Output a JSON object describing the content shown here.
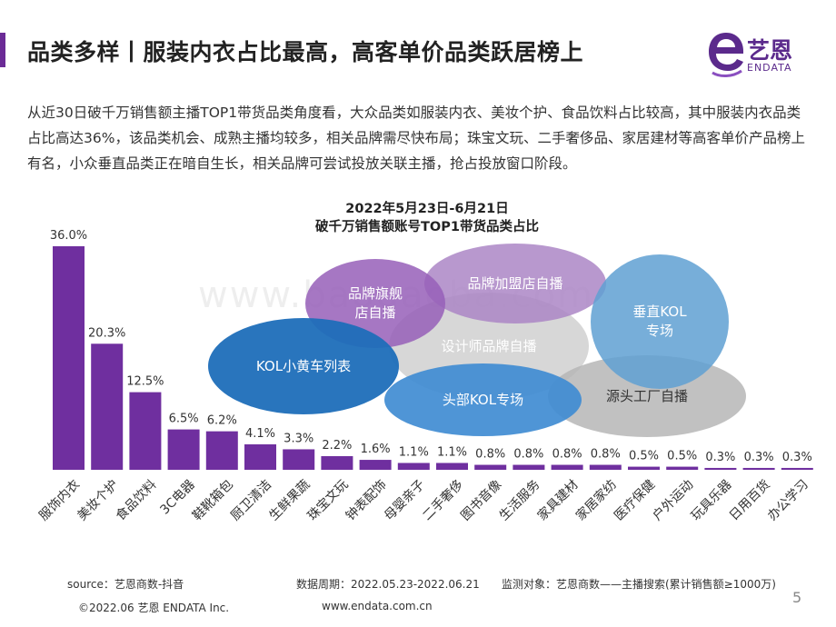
{
  "header": {
    "title": "品类多样丨服装内衣占比最高，高客单价品类跃居榜上",
    "logo_cn": "艺恩",
    "logo_en": "ENDATA"
  },
  "intro": "从近30日破千万销售额主播TOP1带货品类角度看，大众品类如服装内衣、美妆个护、食品饮料占比较高，其中服装内衣品类占比高达36%，该品类机会、成熟主播均较多，相关品牌需尽快布局；珠宝文玩、二手奢侈品、家居建材等高客单价产品榜上有名，小众垂直品类正在暗自生长，相关品牌可尝试投放关联主播，抢占投放窗口阶段。",
  "chart_data": {
    "type": "bar",
    "title": "2022年5月23日-6月21日",
    "subtitle": "破千万销售额账号TOP1带货品类占比",
    "categories": [
      "服饰内衣",
      "美妆个护",
      "食品饮料",
      "3C电器",
      "鞋靴箱包",
      "厨卫清洁",
      "生鲜果蔬",
      "珠宝文玩",
      "钟表配饰",
      "母婴亲子",
      "二手奢侈",
      "图书音像",
      "生活服务",
      "家具建材",
      "家居家纺",
      "医疗保健",
      "户外运动",
      "玩具乐器",
      "日用百货",
      "办公学习"
    ],
    "values": [
      36.0,
      20.3,
      12.5,
      6.5,
      6.2,
      4.1,
      3.3,
      2.2,
      1.6,
      1.1,
      1.1,
      0.8,
      0.8,
      0.8,
      0.8,
      0.5,
      0.5,
      0.3,
      0.3,
      0.3
    ],
    "value_labels": [
      "36.0%",
      "20.3%",
      "12.5%",
      "6.5%",
      "6.2%",
      "4.1%",
      "3.3%",
      "2.2%",
      "1.6%",
      "1.1%",
      "1.1%",
      "0.8%",
      "0.8%",
      "0.8%",
      "0.8%",
      "0.5%",
      "0.5%",
      "0.3%",
      "0.3%",
      "0.3%"
    ],
    "ylim": [
      0,
      36.0
    ],
    "bar_color": "#6f2f9f",
    "grid": false
  },
  "bubbles": {
    "designer": "设计师品牌自播",
    "source": "源头工厂自播",
    "franchise": "品牌加盟店自播",
    "flagship_l1": "品牌旗舰",
    "flagship_l2": "店自播",
    "vertical_l1": "垂直KOL",
    "vertical_l2": "专场",
    "top_kol": "头部KOL专场",
    "kol_cart": "KOL小黄车列表"
  },
  "footer": {
    "source": "source：艺恩商数-抖音",
    "period": "数据周期：2022.05.23-2022.06.21",
    "monitor": "监测对象：艺恩商数——主播搜索(累计销售额≥1000万)",
    "copyright": "©2022.06 艺恩 ENDATA Inc.",
    "website": "www.endata.com.cn",
    "page": "5"
  },
  "watermark": "www.baogaoba.com",
  "colors": {
    "accent": "#6b2b96",
    "bar": "#6f2f9f"
  }
}
